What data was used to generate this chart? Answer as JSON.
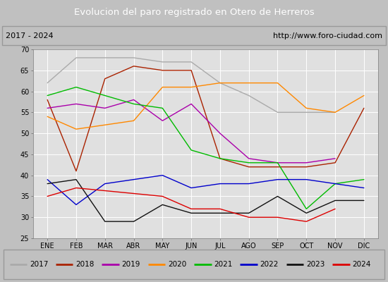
{
  "title": "Evolucion del paro registrado en Otero de Herreros",
  "subtitle_left": "2017 - 2024",
  "subtitle_right": "http://www.foro-ciudad.com",
  "xlabel_months": [
    "ENE",
    "FEB",
    "MAR",
    "ABR",
    "MAY",
    "JUN",
    "JUL",
    "AGO",
    "SEP",
    "OCT",
    "NOV",
    "DIC"
  ],
  "ylim": [
    25,
    70
  ],
  "yticks": [
    25,
    30,
    35,
    40,
    45,
    50,
    55,
    60,
    65,
    70
  ],
  "series": {
    "2017": {
      "color": "#aaaaaa",
      "values": [
        62,
        68,
        68,
        68,
        67,
        67,
        62,
        59,
        55,
        55,
        55,
        null
      ]
    },
    "2018": {
      "color": "#aa2200",
      "values": [
        58,
        41,
        63,
        66,
        65,
        65,
        44,
        42,
        42,
        42,
        43,
        56
      ]
    },
    "2019": {
      "color": "#aa00aa",
      "values": [
        56,
        57,
        56,
        58,
        53,
        57,
        50,
        44,
        43,
        43,
        44,
        null
      ]
    },
    "2020": {
      "color": "#ff8800",
      "values": [
        54,
        51,
        52,
        53,
        61,
        61,
        62,
        62,
        62,
        56,
        55,
        59
      ]
    },
    "2021": {
      "color": "#00bb00",
      "values": [
        59,
        61,
        59,
        57,
        56,
        46,
        44,
        43,
        43,
        32,
        38,
        39
      ]
    },
    "2022": {
      "color": "#0000cc",
      "values": [
        39,
        33,
        38,
        39,
        40,
        37,
        38,
        38,
        39,
        39,
        38,
        37
      ]
    },
    "2023": {
      "color": "#111111",
      "values": [
        38,
        39,
        29,
        29,
        33,
        31,
        31,
        31,
        35,
        31,
        34,
        34
      ]
    },
    "2024": {
      "color": "#dd0000",
      "values": [
        35,
        37,
        null,
        null,
        35,
        32,
        32,
        30,
        30,
        29,
        32,
        null
      ]
    }
  },
  "title_bg_color": "#3a6bc9",
  "title_text_color": "#ffffff",
  "subtitle_bg_color": "#d8d8d8",
  "plot_bg_color": "#e0e0e0",
  "grid_color": "#ffffff",
  "legend_bg_color": "#e8e8e8",
  "fig_bg_color": "#c0c0c0"
}
